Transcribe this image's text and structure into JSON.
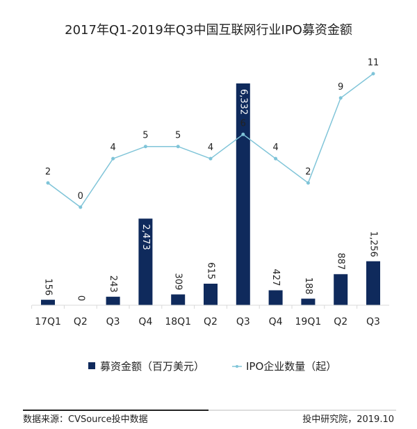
{
  "chart_data": {
    "type": "bar+line",
    "title": "2017年Q1-2019年Q3中国互联网行业IPO募资金额",
    "categories": [
      "17Q1",
      "Q2",
      "Q3",
      "Q4",
      "18Q1",
      "Q2",
      "Q3",
      "Q4",
      "19Q1",
      "Q2",
      "Q3"
    ],
    "series": [
      {
        "name": "募资金额（百万美元）",
        "type": "bar",
        "axis": "left",
        "values": [
          156,
          0,
          243,
          2473,
          309,
          615,
          6332,
          427,
          188,
          887,
          1256
        ],
        "labels": [
          "156",
          "0",
          "243",
          "2,473",
          "309",
          "615",
          "6,332",
          "427",
          "188",
          "887",
          "1,256"
        ]
      },
      {
        "name": "IPO企业数量（起）",
        "type": "line",
        "axis": "right",
        "values": [
          2,
          0,
          4,
          5,
          5,
          4,
          6,
          4,
          2,
          9,
          11
        ]
      }
    ],
    "bar_ylim": [
      0,
      6600
    ],
    "line_ylim": [
      0,
      11
    ],
    "grid": false,
    "legend_position": "bottom",
    "colors": {
      "bar": "#0f2a5c",
      "line": "#7fc4d8"
    }
  },
  "footer": {
    "source": "数据来源：CVSource投中数据",
    "credit": "投中研究院，2019.10"
  }
}
